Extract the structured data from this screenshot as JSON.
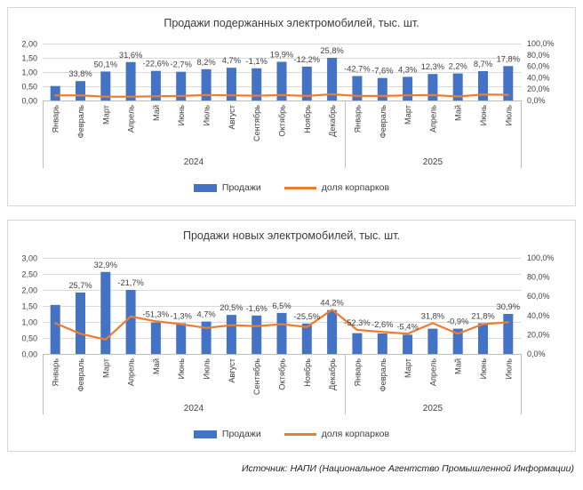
{
  "source_note": "Источник: НАПИ (Национальное Агентство Промышленной Информации)",
  "chart_data": [
    {
      "type": "bar+line",
      "title": "Продажи подержанных электромобилей, тыс. шт.",
      "legend_bar": "Продажи",
      "legend_line": "доля корпарков",
      "categories": [
        "Январь",
        "Февраль",
        "Март",
        "Апрель",
        "Май",
        "Июнь",
        "Июль",
        "Август",
        "Сентябрь",
        "Октябрь",
        "Ноябрь",
        "Декабрь",
        "Январь",
        "Февраль",
        "Март",
        "Апрель",
        "Май",
        "Июнь",
        "Июль"
      ],
      "year_groups": [
        {
          "label": "2024",
          "count": 12
        },
        {
          "label": "2025",
          "count": 7
        }
      ],
      "series": [
        {
          "name": "Продажи",
          "type": "bar",
          "axis": "left",
          "values": [
            0.51,
            0.68,
            1.02,
            1.35,
            1.04,
            1.01,
            1.1,
            1.15,
            1.13,
            1.36,
            1.19,
            1.5,
            0.86,
            0.79,
            0.83,
            0.93,
            0.95,
            1.03,
            1.21
          ]
        },
        {
          "name": "доля корпарков",
          "type": "line",
          "axis": "right",
          "values": [
            9,
            9,
            6.5,
            6.5,
            7.5,
            8,
            9.5,
            9,
            8.5,
            9.5,
            8,
            11,
            8,
            8,
            9,
            9.5,
            7,
            10.5,
            10
          ]
        }
      ],
      "data_labels": [
        "",
        "33,8%",
        "50,1%",
        "31,6%",
        "-22,6%",
        "-2,7%",
        "8,2%",
        "4,7%",
        "-1,1%",
        "19,9%",
        "-12,2%",
        "25,8%",
        "-42,7%",
        "-7,6%",
        "4,3%",
        "12,3%",
        "2,2%",
        "8,7%",
        "17,8%"
      ],
      "left_axis": {
        "min": 0,
        "max": 2,
        "ticks": [
          "2,00",
          "1,50",
          "1,00",
          "0,50",
          "0,00"
        ]
      },
      "right_axis": {
        "min": 0,
        "max": 100,
        "ticks": [
          "100,0%",
          "80,0%",
          "60,0%",
          "40,0%",
          "20,0%",
          "0,0%"
        ]
      },
      "grid": true,
      "legend_position": "bottom",
      "colors": {
        "bar": "#4472C4",
        "line": "#ED7D31"
      }
    },
    {
      "type": "bar+line",
      "title": "Продажи новых электромобилей, тыс. шт.",
      "legend_bar": "Продажи",
      "legend_line": "доля корпарков",
      "categories": [
        "Январь",
        "Февраль",
        "Март",
        "Апрель",
        "Май",
        "Июнь",
        "Июль",
        "Август",
        "Сентябрь",
        "Октябрь",
        "Ноябрь",
        "Декабрь",
        "Январь",
        "Февраль",
        "Март",
        "Апрель",
        "Май",
        "Июнь",
        "Июль"
      ],
      "year_groups": [
        {
          "label": "2024",
          "count": 12
        },
        {
          "label": "2025",
          "count": 7
        }
      ],
      "series": [
        {
          "name": "Продажи",
          "type": "bar",
          "axis": "left",
          "values": [
            1.53,
            1.92,
            2.56,
            2.0,
            0.98,
            0.96,
            1.01,
            1.22,
            1.2,
            1.28,
            0.95,
            1.37,
            0.65,
            0.64,
            0.6,
            0.79,
            0.79,
            0.96,
            1.25
          ]
        },
        {
          "name": "доля корпарков",
          "type": "line",
          "axis": "right",
          "values": [
            32,
            21,
            15,
            39,
            34,
            31,
            27,
            30,
            29,
            31,
            28,
            46,
            25,
            23,
            21,
            32,
            21,
            31,
            33
          ]
        }
      ],
      "data_labels": [
        "",
        "25,7%",
        "32,9%",
        "-21,7%",
        "-51,3%",
        "-1,3%",
        "4,7%",
        "20,5%",
        "-1,6%",
        "6,5%",
        "-25,5%",
        "44,2%",
        "-52,3%",
        "-2,6%",
        "-5,4%",
        "31,8%",
        "-0,9%",
        "21,8%",
        "30,9%"
      ],
      "left_axis": {
        "min": 0,
        "max": 3,
        "ticks": [
          "3,00",
          "2,50",
          "2,00",
          "1,50",
          "1,00",
          "0,50",
          "0,00"
        ]
      },
      "right_axis": {
        "min": 0,
        "max": 100,
        "ticks": [
          "100,0%",
          "80,0%",
          "60,0%",
          "40,0%",
          "20,0%",
          "0,0%"
        ]
      },
      "grid": true,
      "legend_position": "bottom",
      "colors": {
        "bar": "#4472C4",
        "line": "#ED7D31"
      }
    }
  ]
}
